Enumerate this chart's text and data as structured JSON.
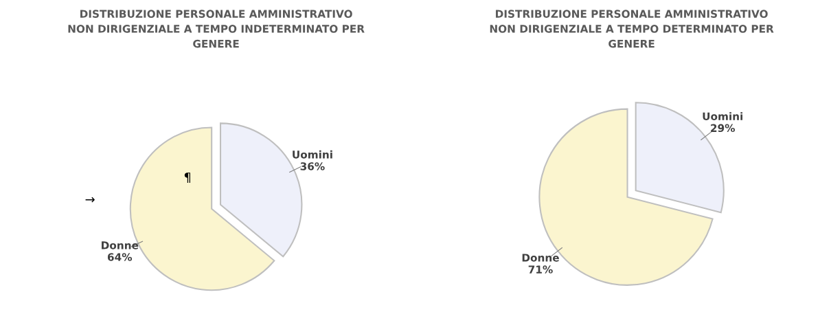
{
  "chart_data": [
    {
      "type": "pie",
      "title": "DISTRIBUZIONE PERSONALE AMMINISTRATIVO\nNON DIRIGENZIALE A TEMPO INDETERMINATO PER\nGENERE",
      "categories": [
        "Uomini",
        "Donne"
      ],
      "values": [
        36,
        64
      ],
      "value_labels": [
        "36%",
        "64%"
      ],
      "colors": [
        "#eef0fa",
        "#fbf5cf"
      ],
      "annotations": [
        "→",
        "¶"
      ]
    },
    {
      "type": "pie",
      "title": "DISTRIBUZIONE PERSONALE AMMINISTRATIVO\nNON DIRIGENZIALE A TEMPO DETERMINATO PER\nGENERE",
      "categories": [
        "Uomini",
        "Donne"
      ],
      "values": [
        29,
        71
      ],
      "value_labels": [
        "29%",
        "71%"
      ],
      "colors": [
        "#eef0fa",
        "#fbf5cf"
      ]
    }
  ]
}
